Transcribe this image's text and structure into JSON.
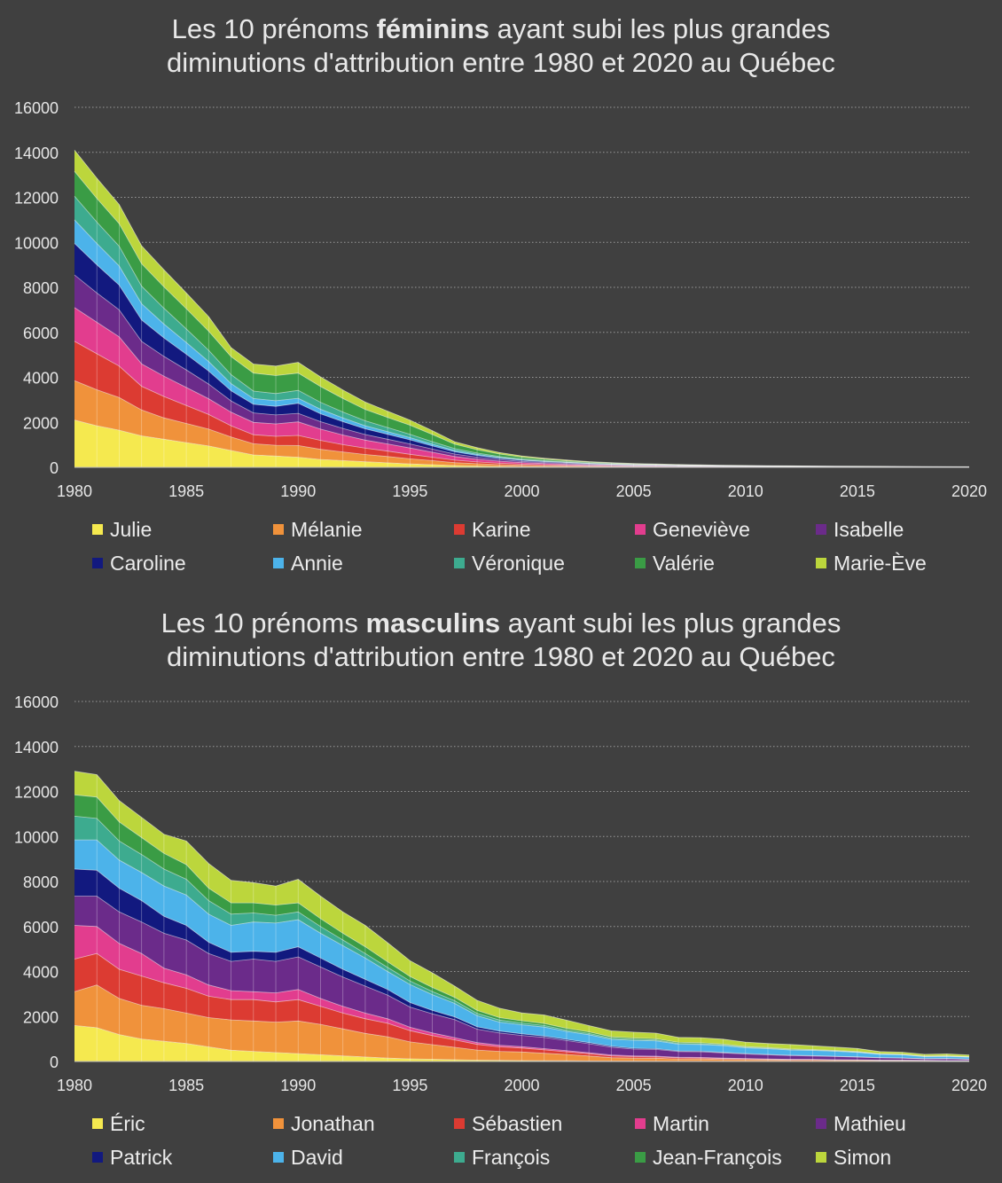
{
  "chart_data": [
    {
      "type": "area",
      "stacked": true,
      "title_prefix": "Les 10 prénoms ",
      "title_bold": "féminins",
      "title_suffix": " ayant subi les plus grandes",
      "title_line2": "diminutions d'attribution entre 1980 et 2020 au Québec",
      "x": [
        1980,
        1981,
        1982,
        1983,
        1984,
        1985,
        1986,
        1987,
        1988,
        1989,
        1990,
        1991,
        1992,
        1993,
        1994,
        1995,
        1996,
        1997,
        1998,
        1999,
        2000,
        2001,
        2002,
        2003,
        2004,
        2005,
        2006,
        2007,
        2008,
        2009,
        2010,
        2011,
        2012,
        2013,
        2014,
        2015,
        2016,
        2017,
        2018,
        2019,
        2020
      ],
      "xticks": [
        1980,
        1985,
        1990,
        1995,
        2000,
        2005,
        2010,
        2015,
        2020
      ],
      "ylim": [
        0,
        16000
      ],
      "yticks": [
        0,
        2000,
        4000,
        6000,
        8000,
        10000,
        12000,
        14000,
        16000
      ],
      "grid": true,
      "series": [
        {
          "name": "Julie",
          "color": "#f5e94f",
          "values": [
            2100,
            1850,
            1650,
            1400,
            1250,
            1100,
            950,
            750,
            550,
            500,
            450,
            350,
            300,
            250,
            200,
            150,
            120,
            80,
            60,
            40,
            30,
            25,
            20,
            15,
            12,
            10,
            10,
            8,
            8,
            6,
            6,
            5,
            5,
            4,
            4,
            3,
            3,
            3,
            2,
            2,
            2
          ]
        },
        {
          "name": "Mélanie",
          "color": "#f0923b",
          "values": [
            1750,
            1600,
            1450,
            1150,
            950,
            850,
            750,
            600,
            500,
            480,
            520,
            450,
            380,
            320,
            280,
            230,
            180,
            130,
            100,
            80,
            60,
            50,
            40,
            30,
            25,
            20,
            18,
            15,
            12,
            10,
            10,
            8,
            8,
            6,
            6,
            5,
            5,
            4,
            4,
            3,
            3
          ]
        },
        {
          "name": "Karine",
          "color": "#dc3b32",
          "values": [
            1750,
            1600,
            1400,
            1050,
            950,
            800,
            650,
            500,
            400,
            400,
            450,
            400,
            330,
            280,
            240,
            200,
            150,
            110,
            80,
            60,
            50,
            40,
            30,
            25,
            20,
            15,
            12,
            10,
            10,
            8,
            8,
            6,
            6,
            5,
            5,
            4,
            4,
            3,
            3,
            2,
            2
          ]
        },
        {
          "name": "Geneviève",
          "color": "#e23d8e",
          "values": [
            1500,
            1400,
            1300,
            1000,
            900,
            800,
            700,
            600,
            550,
            550,
            600,
            500,
            430,
            360,
            320,
            280,
            220,
            160,
            120,
            90,
            70,
            55,
            45,
            35,
            28,
            22,
            20,
            16,
            14,
            12,
            10,
            10,
            8,
            8,
            6,
            6,
            5,
            5,
            4,
            4,
            3
          ]
        },
        {
          "name": "Isabelle",
          "color": "#6b2b8a",
          "values": [
            1450,
            1300,
            1200,
            1000,
            880,
            780,
            650,
            500,
            420,
            400,
            380,
            330,
            290,
            250,
            210,
            180,
            140,
            110,
            90,
            70,
            55,
            45,
            38,
            30,
            26,
            22,
            20,
            18,
            16,
            14,
            12,
            11,
            10,
            9,
            8,
            7,
            6,
            6,
            5,
            5,
            5
          ]
        },
        {
          "name": "Caroline",
          "color": "#12197f",
          "values": [
            1400,
            1250,
            1100,
            950,
            820,
            700,
            580,
            450,
            380,
            380,
            450,
            350,
            300,
            250,
            220,
            180,
            140,
            100,
            80,
            60,
            45,
            36,
            30,
            24,
            20,
            16,
            14,
            12,
            10,
            9,
            8,
            7,
            6,
            6,
            5,
            5,
            4,
            4,
            3,
            3,
            3
          ]
        },
        {
          "name": "Annie",
          "color": "#4cb3ea",
          "values": [
            1050,
            950,
            850,
            720,
            620,
            520,
            420,
            320,
            260,
            250,
            220,
            200,
            170,
            140,
            120,
            100,
            80,
            60,
            45,
            35,
            28,
            22,
            18,
            15,
            12,
            10,
            9,
            8,
            7,
            6,
            5,
            5,
            4,
            4,
            3,
            3,
            3,
            2,
            2,
            2,
            2
          ]
        },
        {
          "name": "Véronique",
          "color": "#3dab8f",
          "values": [
            1050,
            950,
            880,
            780,
            700,
            600,
            500,
            400,
            330,
            320,
            350,
            310,
            260,
            220,
            180,
            150,
            110,
            80,
            60,
            45,
            35,
            28,
            22,
            18,
            14,
            12,
            10,
            8,
            7,
            6,
            5,
            5,
            4,
            4,
            3,
            3,
            3,
            2,
            2,
            2,
            2
          ]
        },
        {
          "name": "Valérie",
          "color": "#3a9c45",
          "values": [
            1100,
            1050,
            1000,
            1000,
            950,
            900,
            850,
            800,
            800,
            800,
            770,
            700,
            600,
            500,
            450,
            400,
            320,
            200,
            150,
            110,
            80,
            60,
            45,
            35,
            28,
            22,
            18,
            15,
            12,
            10,
            9,
            8,
            7,
            6,
            5,
            5,
            4,
            4,
            3,
            3,
            3
          ]
        },
        {
          "name": "Marie-Ève",
          "color": "#bcd63c",
          "values": [
            950,
            900,
            850,
            800,
            760,
            700,
            650,
            400,
            400,
            420,
            480,
            430,
            380,
            330,
            280,
            230,
            170,
            110,
            90,
            70,
            55,
            44,
            40,
            30,
            24,
            20,
            18,
            16,
            14,
            12,
            10,
            9,
            8,
            7,
            6,
            5,
            5,
            4,
            4,
            3,
            3
          ]
        }
      ]
    },
    {
      "type": "area",
      "stacked": true,
      "title_prefix": "Les 10 prénoms ",
      "title_bold": "masculins",
      "title_suffix": " ayant subi les plus grandes",
      "title_line2": "diminutions d'attribution entre 1980 et 2020 au Québec",
      "x": [
        1980,
        1981,
        1982,
        1983,
        1984,
        1985,
        1986,
        1987,
        1988,
        1989,
        1990,
        1991,
        1992,
        1993,
        1994,
        1995,
        1996,
        1997,
        1998,
        1999,
        2000,
        2001,
        2002,
        2003,
        2004,
        2005,
        2006,
        2007,
        2008,
        2009,
        2010,
        2011,
        2012,
        2013,
        2014,
        2015,
        2016,
        2017,
        2018,
        2019,
        2020
      ],
      "xticks": [
        1980,
        1985,
        1990,
        1995,
        2000,
        2005,
        2010,
        2015,
        2020
      ],
      "ylim": [
        0,
        16000
      ],
      "yticks": [
        0,
        2000,
        4000,
        6000,
        8000,
        10000,
        12000,
        14000,
        16000
      ],
      "grid": true,
      "series": [
        {
          "name": "Éric",
          "color": "#f5e94f",
          "values": [
            1600,
            1500,
            1200,
            1000,
            900,
            800,
            650,
            500,
            450,
            400,
            350,
            300,
            250,
            200,
            150,
            120,
            100,
            80,
            60,
            50,
            40,
            35,
            30,
            25,
            20,
            18,
            15,
            12,
            10,
            10,
            8,
            8,
            6,
            6,
            5,
            5,
            4,
            4,
            3,
            3,
            3
          ]
        },
        {
          "name": "Jonathan",
          "color": "#f0923b",
          "values": [
            1500,
            1900,
            1600,
            1500,
            1450,
            1350,
            1300,
            1350,
            1350,
            1350,
            1450,
            1350,
            1200,
            1050,
            950,
            750,
            650,
            550,
            450,
            400,
            380,
            330,
            280,
            220,
            150,
            130,
            130,
            100,
            100,
            80,
            70,
            60,
            50,
            50,
            40,
            40,
            30,
            30,
            25,
            20,
            20
          ]
        },
        {
          "name": "Sébastien",
          "color": "#dc3b32",
          "values": [
            1450,
            1400,
            1300,
            1300,
            1150,
            1100,
            950,
            900,
            950,
            900,
            950,
            800,
            700,
            650,
            600,
            500,
            400,
            330,
            250,
            200,
            180,
            150,
            120,
            100,
            80,
            70,
            60,
            50,
            45,
            40,
            35,
            30,
            28,
            25,
            22,
            20,
            18,
            16,
            14,
            12,
            10
          ]
        },
        {
          "name": "Martin",
          "color": "#e23d8e",
          "values": [
            1500,
            1200,
            1150,
            1000,
            650,
            600,
            500,
            400,
            350,
            400,
            450,
            350,
            300,
            250,
            200,
            150,
            120,
            100,
            80,
            70,
            60,
            55,
            50,
            45,
            40,
            35,
            30,
            28,
            25,
            22,
            20,
            18,
            16,
            14,
            12,
            10,
            10,
            8,
            8,
            6,
            6
          ]
        },
        {
          "name": "Mathieu",
          "color": "#6b2b8a",
          "values": [
            1300,
            1350,
            1400,
            1400,
            1550,
            1550,
            1400,
            1300,
            1450,
            1400,
            1450,
            1400,
            1300,
            1200,
            1050,
            900,
            850,
            800,
            600,
            550,
            500,
            500,
            450,
            400,
            350,
            300,
            300,
            250,
            250,
            230,
            200,
            180,
            160,
            150,
            140,
            120,
            100,
            90,
            70,
            80,
            60
          ]
        },
        {
          "name": "Patrick",
          "color": "#12197f",
          "values": [
            1200,
            1150,
            1050,
            950,
            750,
            650,
            500,
            400,
            350,
            400,
            450,
            400,
            350,
            300,
            250,
            200,
            150,
            120,
            100,
            80,
            70,
            60,
            55,
            50,
            45,
            40,
            35,
            30,
            28,
            25,
            22,
            20,
            18,
            16,
            14,
            12,
            10,
            10,
            8,
            8,
            6
          ]
        },
        {
          "name": "David",
          "color": "#4cb3ea",
          "values": [
            1300,
            1350,
            1250,
            1250,
            1350,
            1350,
            1250,
            1200,
            1300,
            1300,
            1200,
            1100,
            1050,
            950,
            800,
            800,
            700,
            600,
            500,
            400,
            400,
            400,
            350,
            350,
            300,
            350,
            350,
            300,
            300,
            300,
            250,
            250,
            230,
            230,
            220,
            200,
            150,
            140,
            90,
            100,
            90
          ]
        },
        {
          "name": "François",
          "color": "#3dab8f",
          "values": [
            1050,
            950,
            850,
            800,
            750,
            700,
            600,
            500,
            400,
            350,
            350,
            300,
            250,
            200,
            180,
            160,
            140,
            120,
            100,
            90,
            80,
            70,
            60,
            55,
            50,
            45,
            40,
            35,
            32,
            30,
            28,
            25,
            22,
            20,
            18,
            16,
            14,
            12,
            10,
            10,
            8
          ]
        },
        {
          "name": "Jean-François",
          "color": "#3a9c45",
          "values": [
            950,
            950,
            850,
            750,
            700,
            650,
            550,
            500,
            450,
            450,
            400,
            350,
            300,
            300,
            250,
            200,
            180,
            150,
            130,
            110,
            100,
            90,
            80,
            70,
            60,
            55,
            50,
            45,
            40,
            35,
            30,
            28,
            25,
            22,
            20,
            18,
            16,
            14,
            12,
            10,
            10
          ]
        },
        {
          "name": "Simon",
          "color": "#bcd63c",
          "values": [
            1050,
            1000,
            950,
            900,
            850,
            1050,
            1100,
            1000,
            900,
            850,
            1050,
            1000,
            950,
            950,
            850,
            700,
            650,
            500,
            450,
            420,
            350,
            380,
            360,
            280,
            270,
            260,
            250,
            220,
            230,
            220,
            200,
            180,
            200,
            170,
            150,
            140,
            90,
            90,
            80,
            90,
            80
          ]
        }
      ]
    }
  ]
}
